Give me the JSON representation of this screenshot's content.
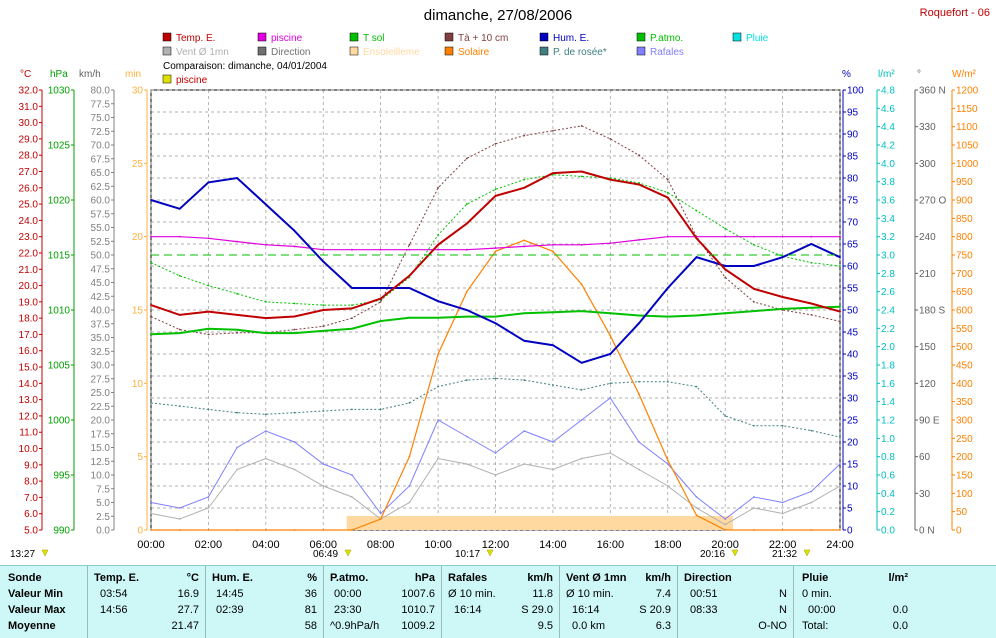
{
  "title": "dimanche, 27/08/2006",
  "station": "Roquefort - 06",
  "comparison": "Comparaison: dimanche, 04/01/2004",
  "legend": [
    {
      "label": "Temp. E.",
      "color": "#c00000"
    },
    {
      "label": "piscine",
      "color": "#e000e0"
    },
    {
      "label": "T sol",
      "color": "#00c000"
    },
    {
      "label": "Tà + 10 cm",
      "color": "#804040"
    },
    {
      "label": "Hum. E.",
      "color": "#0000c0"
    },
    {
      "label": "P.atmo.",
      "color": "#00c000"
    },
    {
      "label": "Pluie",
      "color": "#00e0e0"
    },
    {
      "label": "Vent Ø 1mn",
      "color": "#b0b0b0"
    },
    {
      "label": "Direction",
      "color": "#707070"
    },
    {
      "label": "Ensoleilleme",
      "color": "#ffd9a0"
    },
    {
      "label": "Solaire",
      "color": "#ff8000"
    },
    {
      "label": "P. de rosée*",
      "color": "#408080"
    },
    {
      "label": "Rafales",
      "color": "#8080ff"
    }
  ],
  "comparison_legend": {
    "label": "piscine",
    "color": "#e0e000"
  },
  "axes": {
    "temp_unit": "°C",
    "press_unit": "hPa",
    "wind_unit": "km/h",
    "sun_unit": "min",
    "hum_unit": "%",
    "rain_unit": "l/m²",
    "dir_unit": "°",
    "solar_unit": "W/m²",
    "temp_ticks": [
      "32.0",
      "31.0",
      "30.0",
      "29.0",
      "28.0",
      "27.0",
      "26.0",
      "25.0",
      "24.0",
      "23.0",
      "22.0",
      "21.0",
      "20.0",
      "19.0",
      "18.0",
      "17.0",
      "16.0",
      "15.0",
      "14.0",
      "13.0",
      "12.0",
      "11.0",
      "10.0",
      "9.0",
      "8.0",
      "7.0",
      "6.0",
      "5.0"
    ],
    "press_ticks": [
      "1030",
      "1025",
      "1020",
      "1015",
      "1010",
      "1005",
      "1000",
      "995",
      "990"
    ],
    "wind_ticks": [
      "80.0",
      "77.5",
      "75.0",
      "72.5",
      "70.0",
      "67.5",
      "65.0",
      "62.5",
      "60.0",
      "57.5",
      "55.0",
      "52.5",
      "50.0",
      "47.5",
      "45.0",
      "42.5",
      "40.0",
      "37.5",
      "35.0",
      "32.5",
      "30.0",
      "27.5",
      "25.0",
      "22.5",
      "20.0",
      "17.5",
      "15.0",
      "12.5",
      "10.0",
      "7.5",
      "5.0",
      "2.5",
      "0.0"
    ],
    "sun_ticks": [
      "30",
      "25",
      "20",
      "15",
      "10",
      "5",
      "0"
    ],
    "hum_ticks": [
      "100",
      "95",
      "90",
      "85",
      "80",
      "75",
      "70",
      "65",
      "60",
      "55",
      "50",
      "45",
      "40",
      "35",
      "30",
      "25",
      "20",
      "15",
      "10",
      "5",
      "0"
    ],
    "rain_ticks": [
      "4.8",
      "4.6",
      "4.4",
      "4.2",
      "4.0",
      "3.8",
      "3.6",
      "3.4",
      "3.2",
      "3.0",
      "2.8",
      "2.6",
      "2.4",
      "2.2",
      "2.0",
      "1.8",
      "1.6",
      "1.4",
      "1.2",
      "1.0",
      "0.8",
      "0.6",
      "0.4",
      "0.2",
      "0.0"
    ],
    "dir_ticks": [
      "360 N",
      "330",
      "300",
      "270 O",
      "240",
      "210",
      "180 S",
      "150",
      "120",
      "90 E",
      "60",
      "30",
      "0 N"
    ],
    "solar_ticks": [
      "1200",
      "1150",
      "1100",
      "1050",
      "1000",
      "950",
      "900",
      "850",
      "800",
      "750",
      "700",
      "650",
      "600",
      "550",
      "500",
      "450",
      "400",
      "350",
      "300",
      "250",
      "200",
      "150",
      "100",
      "50",
      "0"
    ],
    "x_ticks": [
      "00:00",
      "02:00",
      "04:00",
      "06:00",
      "08:00",
      "10:00",
      "12:00",
      "14:00",
      "16:00",
      "18:00",
      "20:00",
      "22:00",
      "24:00"
    ]
  },
  "events": [
    {
      "label": "13:27"
    },
    {
      "label": "06:49"
    },
    {
      "label": "10:17"
    },
    {
      "label": "20:16"
    },
    {
      "label": "21:32"
    }
  ],
  "chart_data": {
    "type": "line",
    "title": "dimanche, 27/08/2006",
    "x_hours": [
      0,
      1,
      2,
      3,
      4,
      5,
      6,
      7,
      8,
      9,
      10,
      11,
      12,
      13,
      14,
      15,
      16,
      17,
      18,
      19,
      20,
      21,
      22,
      23,
      24
    ],
    "series": [
      {
        "name": "Temp. E.",
        "unit": "°C",
        "values": [
          18.8,
          18.2,
          18.4,
          18.2,
          18.0,
          18.1,
          18.5,
          18.6,
          19.2,
          20.6,
          22.5,
          23.8,
          25.5,
          26.0,
          26.9,
          27.0,
          26.5,
          26.2,
          25.4,
          22.9,
          21.0,
          19.8,
          19.3,
          18.9,
          18.4
        ]
      },
      {
        "name": "Hum. E.",
        "unit": "%",
        "values": [
          75,
          73,
          79,
          80,
          74,
          68,
          61,
          55,
          55,
          55,
          52,
          50,
          47,
          43,
          42,
          38,
          40,
          47,
          55,
          62,
          60,
          60,
          62,
          65,
          62
        ]
      },
      {
        "name": "P.atmo.",
        "unit": "hPa",
        "values": [
          1007.8,
          1007.9,
          1008.3,
          1008.2,
          1007.9,
          1007.9,
          1008.1,
          1008.3,
          1009.0,
          1009.3,
          1009.3,
          1009.4,
          1009.4,
          1009.7,
          1009.8,
          1009.9,
          1009.7,
          1009.5,
          1009.4,
          1009.5,
          1009.7,
          1009.9,
          1010.1,
          1010.2,
          1010.3
        ]
      },
      {
        "name": "piscine",
        "unit": "°C",
        "values": [
          23.0,
          23.0,
          22.9,
          22.7,
          22.5,
          22.4,
          22.2,
          22.2,
          22.2,
          22.2,
          22.2,
          22.2,
          22.3,
          22.4,
          22.5,
          22.5,
          22.6,
          22.8,
          23.0,
          23.0,
          23.0,
          23.0,
          23.0,
          23.0,
          23.0
        ]
      },
      {
        "name": "Tà + 10 cm",
        "unit": "°C",
        "values": [
          18.1,
          17.3,
          17.0,
          17.1,
          17.1,
          17.3,
          17.5,
          18.0,
          19.0,
          22.5,
          26.0,
          27.8,
          28.7,
          29.2,
          29.5,
          29.8,
          29.0,
          28.0,
          26.5,
          23.0,
          20.5,
          19.0,
          18.5,
          18.2,
          17.8
        ]
      },
      {
        "name": "T sol",
        "unit": "°C",
        "values": [
          21.4,
          20.6,
          20.0,
          19.5,
          19.0,
          18.9,
          18.8,
          18.8,
          19.1,
          20.5,
          23.1,
          25.0,
          25.9,
          26.5,
          26.8,
          26.7,
          26.6,
          26.3,
          25.7,
          24.6,
          23.5,
          22.5,
          21.8,
          21.4,
          21.2
        ]
      },
      {
        "name": "P. de rosée*",
        "unit": "°C",
        "values": [
          12.8,
          12.6,
          12.4,
          12.2,
          12.1,
          12.2,
          12.3,
          12.4,
          12.4,
          12.8,
          13.8,
          14.2,
          14.3,
          14.2,
          13.9,
          13.6,
          14.0,
          14.1,
          14.1,
          13.8,
          12.0,
          11.4,
          11.4,
          11.1,
          10.7
        ]
      },
      {
        "name": "Solaire",
        "unit": "W/m²",
        "values": [
          0,
          0,
          0,
          0,
          0,
          0,
          0,
          0,
          30,
          200,
          480,
          650,
          760,
          790,
          760,
          670,
          530,
          370,
          190,
          40,
          0,
          0,
          0,
          0,
          0
        ]
      },
      {
        "name": "Rafales",
        "unit": "km/h",
        "values": [
          5,
          4,
          6,
          15,
          18,
          16,
          12,
          10,
          3,
          8,
          20,
          17,
          14,
          18,
          16,
          20,
          24,
          16,
          12,
          6,
          2,
          6,
          5,
          7,
          12
        ]
      },
      {
        "name": "Vent Ø 1mn",
        "unit": "km/h",
        "values": [
          3,
          2,
          4,
          11,
          13,
          11,
          8,
          6,
          2,
          5,
          13,
          12,
          10,
          12,
          11,
          13,
          14,
          11,
          8,
          4,
          1,
          4,
          3,
          5,
          8
        ]
      }
    ],
    "comparison": {
      "name": "piscine",
      "type": "dashed",
      "value_hpa_axis": 1015.0
    },
    "xlabel": "",
    "xlim": [
      0,
      24
    ]
  },
  "summary": {
    "sonde": {
      "title": "Sonde",
      "rows": [
        "Valeur Min",
        "Valeur Max",
        "Moyenne"
      ]
    },
    "temp": {
      "title": "Temp. E.",
      "unit": "°C",
      "min_time": "03:54",
      "min": "16.9",
      "max_time": "14:56",
      "max": "27.7",
      "avg": "21.47"
    },
    "hum": {
      "title": "Hum. E.",
      "unit": "%",
      "min_time": "14:45",
      "min": "36",
      "max_time": "02:39",
      "max": "81",
      "avg": "58"
    },
    "press": {
      "title": "P.atmo.",
      "unit": "hPa",
      "min_time": "00:00",
      "min": "1007.6",
      "max_time": "23:30",
      "max": "1010.7",
      "avg_label": "^0.9hPa/h",
      "avg": "1009.2"
    },
    "gust": {
      "title": "Rafales",
      "unit": "km/h",
      "r1_label": "Ø 10 min.",
      "r1": "11.8",
      "r2_label": "16:14",
      "r2": "S 29.0",
      "r3": "9.5"
    },
    "wind": {
      "title": "Vent Ø 1mn",
      "unit": "km/h",
      "r1_label": "Ø 10 min.",
      "r1": "7.4",
      "r2_label": "16:14",
      "r2": "S 20.9",
      "r3_label": "0.0 km",
      "r3": "6.3"
    },
    "dir": {
      "title": "Direction",
      "r1_label": "00:51",
      "r1": "N",
      "r2_label": "08:33",
      "r2": "N",
      "r3": "O-NO"
    },
    "rain": {
      "title": "Pluie",
      "unit": "l/m²",
      "r1_label": "0 min.",
      "r2_label": "00:00",
      "r2": "0.0",
      "r3_label": "Total:",
      "r3": "0.0"
    }
  }
}
